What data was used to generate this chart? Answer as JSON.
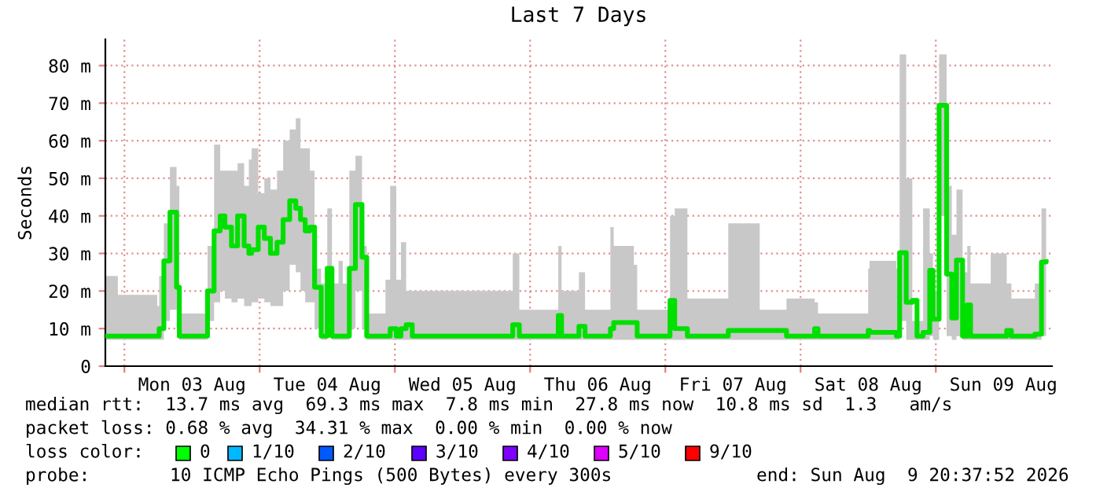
{
  "chart_data": {
    "type": "step",
    "title": "Last 7 Days",
    "ylabel": "Seconds",
    "x": [
      "2026-08-02T20:40",
      "2026-08-02T22:50",
      "2026-08-03T05:50",
      "2026-08-03T06:10",
      "2026-08-03T07:00",
      "2026-08-03T08:05",
      "2026-08-03T09:15",
      "2026-08-03T09:45",
      "2026-08-03T14:15",
      "2026-08-03T14:45",
      "2026-08-03T15:55",
      "2026-08-03T17:00",
      "2026-08-03T17:50",
      "2026-08-03T19:00",
      "2026-08-03T20:05",
      "2026-08-03T21:15",
      "2026-08-03T22:05",
      "2026-08-03T22:35",
      "2026-08-03T23:45",
      "2026-08-04T00:50",
      "2026-08-04T01:55",
      "2026-08-04T03:05",
      "2026-08-04T04:10",
      "2026-08-04T05:20",
      "2026-08-04T06:25",
      "2026-08-04T07:15",
      "2026-08-04T08:05",
      "2026-08-04T08:55",
      "2026-08-04T09:45",
      "2026-08-04T10:55",
      "2026-08-04T12:00",
      "2026-08-04T12:50",
      "2026-08-04T14:00",
      "2026-08-04T14:45",
      "2026-08-04T15:55",
      "2026-08-04T17:00",
      "2026-08-04T18:10",
      "2026-08-04T19:00",
      "2026-08-04T22:20",
      "2026-08-04T23:10",
      "2026-08-05T00:15",
      "2026-08-05T01:05",
      "2026-08-05T02:00",
      "2026-08-05T03:05",
      "2026-08-05T20:05",
      "2026-08-05T20:55",
      "2026-08-05T22:05",
      "2026-08-06T05:00",
      "2026-08-06T05:35",
      "2026-08-06T08:40",
      "2026-08-06T09:45",
      "2026-08-06T14:15",
      "2026-08-06T14:50",
      "2026-08-06T18:25",
      "2026-08-06T19:00",
      "2026-08-07T00:50",
      "2026-08-07T01:40",
      "2026-08-07T03:55",
      "2026-08-07T11:10",
      "2026-08-07T16:45",
      "2026-08-07T21:30",
      "2026-08-08T02:30",
      "2026-08-08T03:05",
      "2026-08-08T12:00",
      "2026-08-08T12:15",
      "2026-08-08T17:00",
      "2026-08-08T17:35",
      "2026-08-08T18:45",
      "2026-08-08T19:50",
      "2026-08-08T20:40",
      "2026-08-08T21:45",
      "2026-08-08T22:55",
      "2026-08-08T23:30",
      "2026-08-09T00:35",
      "2026-08-09T01:55",
      "2026-08-09T02:50",
      "2026-08-09T03:40",
      "2026-08-09T04:45",
      "2026-08-09T05:35",
      "2026-08-09T06:10",
      "2026-08-09T09:45",
      "2026-08-09T12:35",
      "2026-08-09T13:25",
      "2026-08-09T17:35",
      "2026-08-09T18:45",
      "2026-08-09T19:35"
    ],
    "series": [
      {
        "color": "#00e000",
        "values": [
          8,
          8,
          8,
          10,
          28,
          41,
          21,
          8,
          8,
          20,
          36,
          40,
          37,
          32,
          40,
          32,
          30,
          31,
          37,
          34,
          30,
          33,
          39,
          44,
          42,
          39,
          36,
          37,
          21,
          8,
          26,
          8,
          8,
          8,
          26,
          43,
          29,
          8,
          8,
          10,
          8,
          10,
          11,
          8,
          8,
          11,
          8,
          13.5,
          8,
          10.6,
          8,
          10,
          11.6,
          11.6,
          8,
          17.5,
          10,
          8,
          9.5,
          9.5,
          8,
          10,
          8,
          9.5,
          9,
          8,
          30.2,
          17,
          17.5,
          8,
          9,
          25.5,
          12.5,
          69.4,
          24.5,
          12.8,
          28.2,
          8,
          16.3,
          8,
          8,
          9.5,
          8,
          8.5,
          27.7,
          27.8
        ],
        "lower": [
          7,
          7,
          7,
          7,
          12,
          15,
          10,
          7,
          7,
          12,
          17,
          20,
          18,
          17,
          18,
          16,
          16,
          17,
          18,
          17,
          16,
          16,
          20,
          27,
          25,
          20,
          17,
          17,
          10,
          7,
          8,
          7,
          7,
          7,
          10,
          20,
          10,
          7,
          7,
          7,
          7,
          7,
          7,
          7,
          7,
          7,
          7,
          7,
          7,
          7,
          7,
          7,
          7,
          7,
          7,
          7,
          7,
          7,
          7,
          7,
          7,
          7,
          7,
          7,
          7,
          7,
          12,
          7,
          7,
          7,
          7,
          8,
          7,
          40,
          8,
          7,
          8,
          7,
          7,
          7,
          7,
          7,
          7,
          7,
          8,
          8
        ],
        "upper": [
          24,
          19,
          16,
          24,
          38,
          53,
          48,
          14,
          14,
          32,
          59,
          52,
          52,
          52,
          54,
          48,
          55,
          58,
          46,
          50,
          47,
          52,
          60,
          63,
          66,
          58,
          58,
          52,
          26,
          22,
          42,
          22,
          28,
          22,
          52,
          56,
          32,
          14,
          23,
          48,
          23,
          33,
          20,
          20,
          20,
          30,
          15,
          32,
          20,
          25,
          15,
          37,
          32,
          27,
          15,
          40,
          42,
          18,
          38,
          15,
          18,
          17,
          14,
          26,
          28,
          26,
          83,
          50,
          12,
          12,
          42,
          30,
          20,
          83,
          48,
          35,
          47,
          25,
          32,
          22,
          30,
          22,
          18,
          22,
          42,
          42
        ]
      }
    ],
    "xlim": [
      "2026-08-02T20:37",
      "2026-08-09T20:37"
    ],
    "xticks": [
      {
        "value": "2026-08-03",
        "label": null
      },
      {
        "value": "2026-08-03T12:00",
        "label": "Mon 03 Aug"
      },
      {
        "value": "2026-08-04",
        "label": null
      },
      {
        "value": "2026-08-04T12:00",
        "label": "Tue 04 Aug"
      },
      {
        "value": "2026-08-05",
        "label": null
      },
      {
        "value": "2026-08-05T12:00",
        "label": "Wed 05 Aug"
      },
      {
        "value": "2026-08-06",
        "label": null
      },
      {
        "value": "2026-08-06T12:00",
        "label": "Thu 06 Aug"
      },
      {
        "value": "2026-08-07",
        "label": null
      },
      {
        "value": "2026-08-07T12:00",
        "label": "Fri 07 Aug"
      },
      {
        "value": "2026-08-08",
        "label": null
      },
      {
        "value": "2026-08-08T12:00",
        "label": "Sat 08 Aug"
      },
      {
        "value": "2026-08-09",
        "label": null
      },
      {
        "value": "2026-08-09T12:00",
        "label": "Sun 09 Aug"
      }
    ],
    "ylim": [
      0,
      87
    ],
    "yticks": [
      {
        "value": 0,
        "label": "0"
      },
      {
        "value": 10,
        "label": "10 m"
      },
      {
        "value": 20,
        "label": "20 m"
      },
      {
        "value": 30,
        "label": "30 m"
      },
      {
        "value": 40,
        "label": "40 m"
      },
      {
        "value": 50,
        "label": "50 m"
      },
      {
        "value": 60,
        "label": "60 m"
      },
      {
        "value": 70,
        "label": "70 m"
      },
      {
        "value": 80,
        "label": "80 m"
      }
    ],
    "grid": true,
    "annotations": [
      "median rtt:  13.7 ms avg  69.3 ms max  7.8 ms min  27.8 ms now  10.8 ms sd  1.3   am/s",
      "packet loss: 0.68 % avg  34.31 % max  0.00 % min  0.00 % now",
      "loss color:",
      "0",
      "1/10",
      "2/10",
      "3/10",
      "4/10",
      "5/10",
      "9/10",
      "probe:",
      "10 ICMP Echo Pings (500 Bytes) every 300s",
      "end: Sun Aug  9 20:37:52 2026"
    ]
  }
}
